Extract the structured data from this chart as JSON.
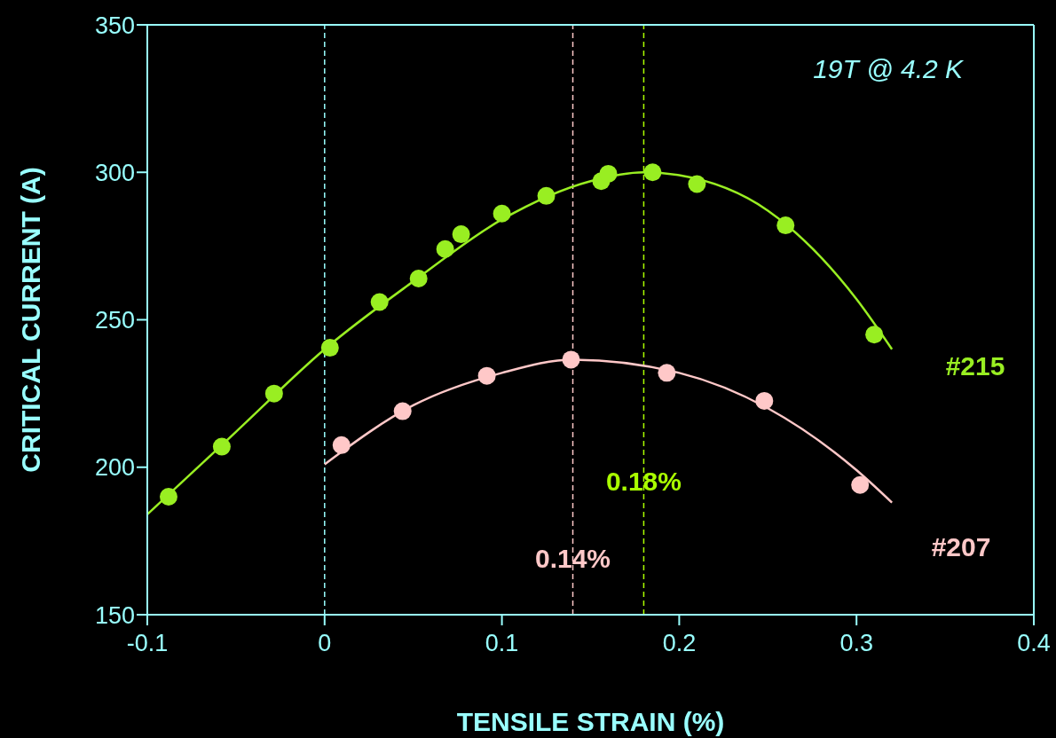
{
  "chart_data": {
    "type": "scatter",
    "xlabel": "TENSILE STRAIN  (%)",
    "ylabel": "CRITICAL CURRENT (A)",
    "xlim": [
      -0.1,
      0.4
    ],
    "xticks": [
      -0.1,
      0,
      0.1,
      0.2,
      0.3,
      0.4
    ],
    "ylim": [
      150,
      350
    ],
    "yticks": [
      150,
      200,
      250,
      300,
      350
    ],
    "marker": "circle",
    "annotations": [
      "19T @ 4.2 K"
    ],
    "ref_lines": [
      {
        "axis": "x",
        "value": 0,
        "color": "#99ffff",
        "line_style": "dashed"
      },
      {
        "axis": "x",
        "value": 0.14,
        "label": "0.14%",
        "color": "#ffc8c8",
        "line_style": "dashed"
      },
      {
        "axis": "x",
        "value": 0.18,
        "label": "0.18%",
        "color": "#aaff00",
        "line_style": "dashed"
      }
    ],
    "series": [
      {
        "name": "#215",
        "color": "#99ee22",
        "x": [
          -0.088,
          -0.058,
          -0.0285,
          0.003,
          0.031,
          0.053,
          0.068,
          0.077,
          0.1,
          0.125,
          0.156,
          0.16,
          0.185,
          0.21,
          0.26,
          0.31
        ],
        "values": [
          190,
          207,
          225,
          240.5,
          256,
          264,
          274,
          279,
          286,
          292,
          297,
          299.5,
          300,
          296,
          282,
          245
        ]
      },
      {
        "type": "line",
        "marker": "none",
        "color": "#99ee22",
        "x": [
          -0.1,
          -0.05,
          0,
          0.05,
          0.1,
          0.15,
          0.18,
          0.2,
          0.25,
          0.3,
          0.32
        ],
        "values": [
          184,
          212,
          240,
          263,
          284,
          297,
          300,
          299,
          287,
          257,
          240
        ]
      },
      {
        "name": "#207",
        "color": "#ffc8c8",
        "x": [
          0.0095,
          0.044,
          0.0915,
          0.139,
          0.193,
          0.248,
          0.302
        ],
        "values": [
          207.5,
          219,
          231,
          236.5,
          232,
          222.5,
          194
        ]
      },
      {
        "type": "line",
        "marker": "none",
        "color": "#ffc8c8",
        "x": [
          0,
          0.05,
          0.1,
          0.14,
          0.2,
          0.25,
          0.3,
          0.32
        ],
        "values": [
          201,
          221,
          232,
          236.5,
          232,
          220,
          199,
          188
        ]
      }
    ]
  }
}
